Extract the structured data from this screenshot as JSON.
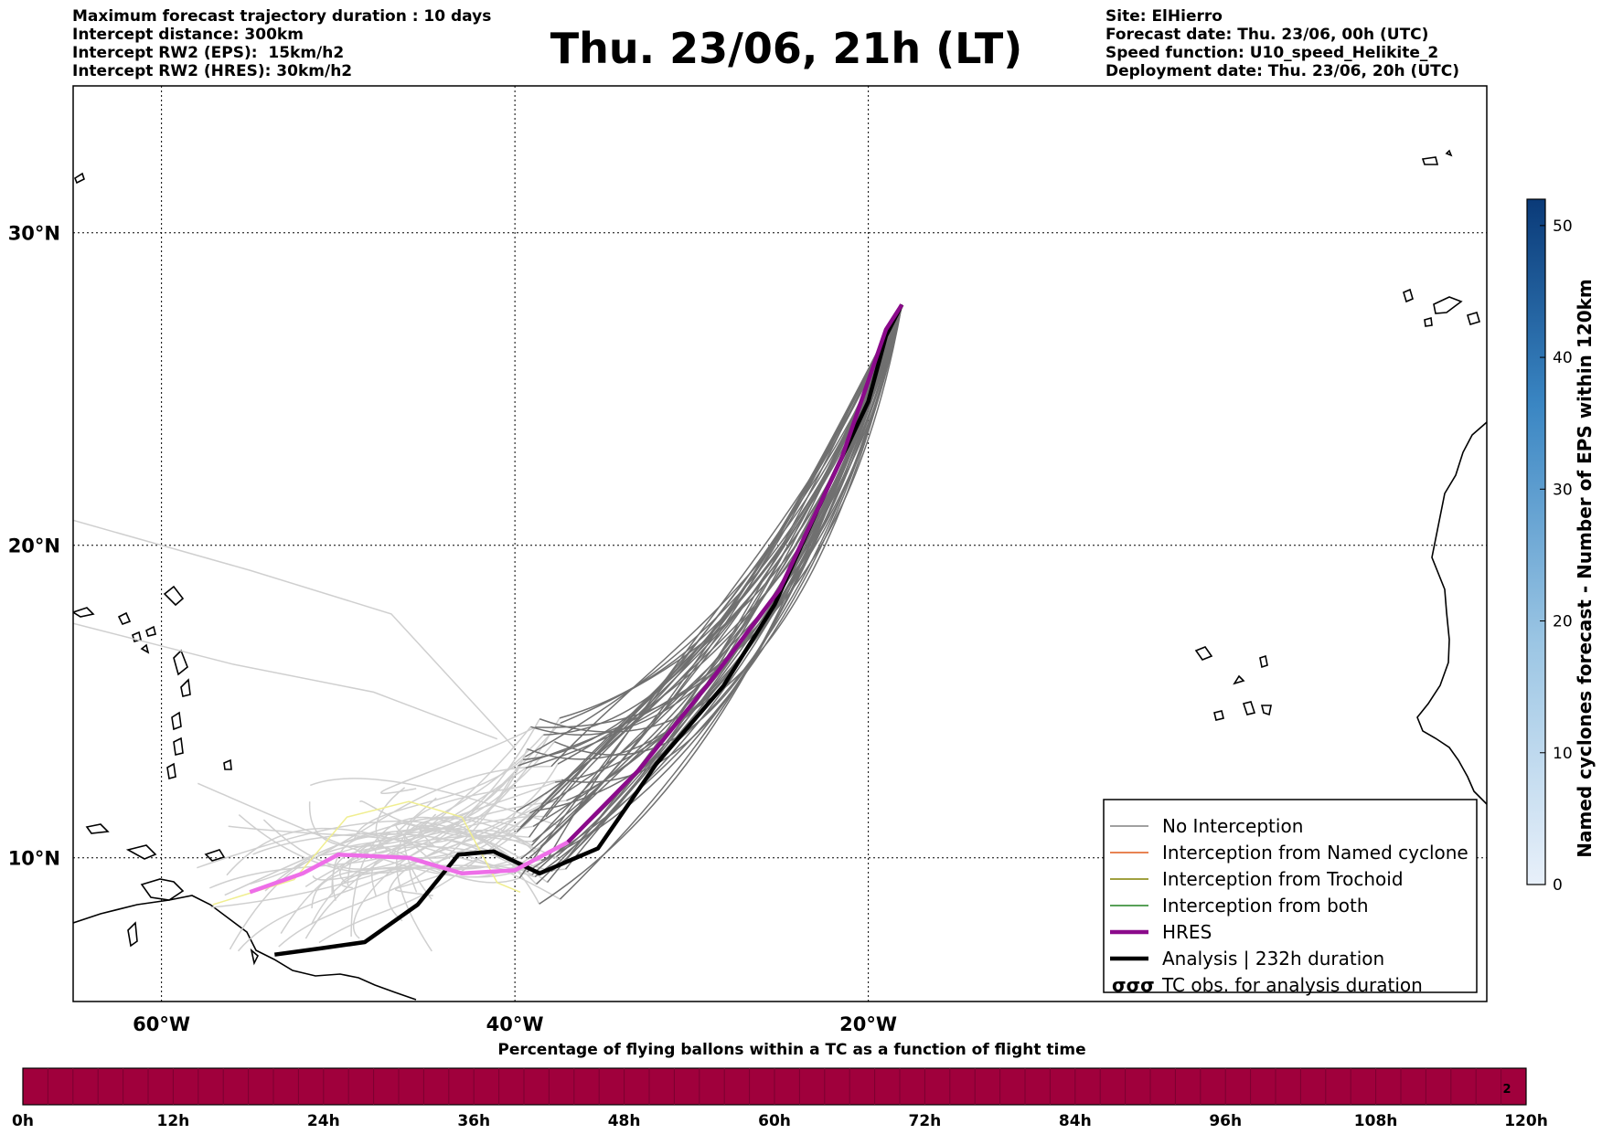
{
  "header_left": {
    "line1": "Maximum forecast trajectory duration : 10 days",
    "line2": "Intercept distance: 300km",
    "line3": "Intercept RW2 (EPS):  15km/h2",
    "line4": "Intercept RW2 (HRES): 30km/h2"
  },
  "title": "Thu. 23/06, 21h (LT)",
  "header_right": {
    "site": "Site: ElHierro",
    "forecast_date": "Forecast date: Thu. 23/06, 00h (UTC)",
    "speed_function": "Speed function: U10_speed_Helikite_2",
    "deployment_date": "Deployment date: Thu. 23/06, 20h (UTC)"
  },
  "map": {
    "lon_range": [
      -65,
      15
    ],
    "lat_range": [
      5.4,
      34.7
    ],
    "lon_ticks": [
      {
        "lon": -60,
        "label": "60°W"
      },
      {
        "lon": -40,
        "label": "40°W"
      },
      {
        "lon": -20,
        "label": "20°W"
      }
    ],
    "lat_ticks": [
      {
        "lat": 10,
        "label": "10°N"
      },
      {
        "lat": 20,
        "label": "20°N"
      },
      {
        "lat": 30,
        "label": "30°N"
      }
    ],
    "hres_track": [
      [
        -55,
        8.9
      ],
      [
        -52,
        9.5
      ],
      [
        -50,
        10.1
      ],
      [
        -46,
        10.0
      ],
      [
        -43,
        9.5
      ],
      [
        -40,
        9.6
      ],
      [
        -37,
        10.5
      ],
      [
        -33,
        12.8
      ],
      [
        -29,
        15.6
      ],
      [
        -25,
        18.6
      ],
      [
        -21.5,
        22.8
      ],
      [
        -19,
        26.9
      ],
      [
        -18.1,
        27.7
      ]
    ],
    "analysis_track": [
      [
        -53.6,
        6.9
      ],
      [
        -51,
        7.1
      ],
      [
        -48.5,
        7.3
      ],
      [
        -45.5,
        8.5
      ],
      [
        -43.2,
        10.1
      ],
      [
        -41.2,
        10.2
      ],
      [
        -38.6,
        9.5
      ],
      [
        -35.3,
        10.3
      ],
      [
        -32,
        13
      ],
      [
        -28.2,
        15.5
      ],
      [
        -25.3,
        18.1
      ],
      [
        -22.5,
        21.6
      ],
      [
        -20,
        24.6
      ],
      [
        -19,
        26.7
      ],
      [
        -18.1,
        27.7
      ]
    ],
    "yellow_track": [
      [
        -57.1,
        8.5
      ],
      [
        -52.5,
        9.3
      ],
      [
        -49.5,
        11.3
      ],
      [
        -46,
        11.8
      ],
      [
        -43,
        11.3
      ],
      [
        -41,
        9.2
      ],
      [
        -39.7,
        8.9
      ]
    ]
  },
  "legend": [
    {
      "label": "No Interception",
      "color": "#808080",
      "style": "thin"
    },
    {
      "label": "Interception from Named cyclone",
      "color": "#e05a1a",
      "style": "thin"
    },
    {
      "label": "Interception from Trochoid",
      "color": "#808000",
      "style": "thin"
    },
    {
      "label": "Interception from both",
      "color": "#208020",
      "style": "thin"
    },
    {
      "label": "HRES",
      "color": "#8b0a8b",
      "style": "thick"
    },
    {
      "label": "Analysis | 232h duration",
      "color": "#000000",
      "style": "thick"
    },
    {
      "label": "TC obs. for analysis duration",
      "color": "#000000",
      "style": "cyclone-symbols"
    }
  ],
  "colorbar": {
    "label": "Named cyclones forecast - Number of EPS within 120km",
    "ticks": [
      "0",
      "10",
      "20",
      "30",
      "40",
      "50"
    ],
    "max_value": 52
  },
  "timeline": {
    "title": "Percentage of flying ballons within a TC as a function of flight time",
    "ticks": [
      "0h",
      "12h",
      "24h",
      "36h",
      "48h",
      "60h",
      "72h",
      "84h",
      "96h",
      "108h",
      "120h"
    ],
    "color": "#a0003c",
    "last_cell_value": "2"
  }
}
